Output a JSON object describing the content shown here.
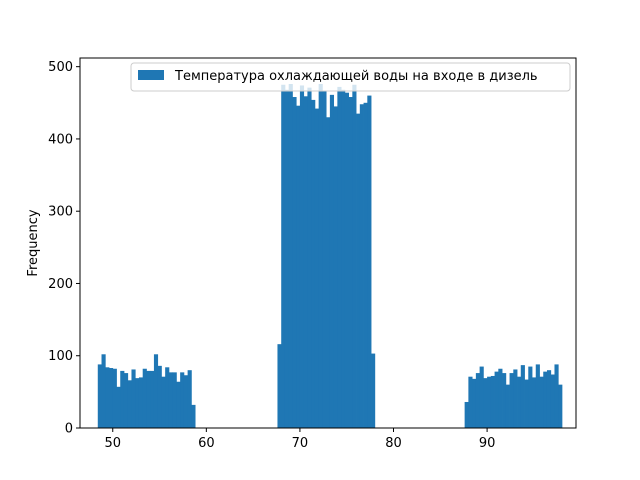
{
  "chart_data": {
    "type": "bar",
    "title": "",
    "xlabel": "",
    "ylabel": "Frequency",
    "xlim": [
      46.5,
      99.5
    ],
    "ylim": [
      0,
      512
    ],
    "xticks": [
      50,
      60,
      70,
      80,
      90
    ],
    "yticks": [
      0,
      100,
      200,
      300,
      400,
      500
    ],
    "grid": false,
    "legend_position": "top-right",
    "series": [
      {
        "name": "Температура охлаждающей воды на входе в дизель",
        "color": "#1f77b4",
        "bin_width": 0.4,
        "bins": [
          {
            "x": 48.4,
            "count": 88
          },
          {
            "x": 48.8,
            "count": 102
          },
          {
            "x": 49.2,
            "count": 84
          },
          {
            "x": 49.6,
            "count": 83
          },
          {
            "x": 50.0,
            "count": 82
          },
          {
            "x": 50.4,
            "count": 57
          },
          {
            "x": 50.8,
            "count": 79
          },
          {
            "x": 51.2,
            "count": 76
          },
          {
            "x": 51.6,
            "count": 66
          },
          {
            "x": 52.0,
            "count": 81
          },
          {
            "x": 52.4,
            "count": 69
          },
          {
            "x": 52.8,
            "count": 70
          },
          {
            "x": 53.2,
            "count": 82
          },
          {
            "x": 53.6,
            "count": 79
          },
          {
            "x": 54.0,
            "count": 79
          },
          {
            "x": 54.4,
            "count": 102
          },
          {
            "x": 54.8,
            "count": 86
          },
          {
            "x": 55.2,
            "count": 71
          },
          {
            "x": 55.6,
            "count": 84
          },
          {
            "x": 56.0,
            "count": 77
          },
          {
            "x": 56.4,
            "count": 77
          },
          {
            "x": 56.8,
            "count": 64
          },
          {
            "x": 57.2,
            "count": 77
          },
          {
            "x": 57.6,
            "count": 73
          },
          {
            "x": 58.0,
            "count": 80
          },
          {
            "x": 58.4,
            "count": 32
          },
          {
            "x": 67.6,
            "count": 116
          },
          {
            "x": 68.0,
            "count": 475
          },
          {
            "x": 68.4,
            "count": 468
          },
          {
            "x": 68.8,
            "count": 476
          },
          {
            "x": 69.2,
            "count": 458
          },
          {
            "x": 69.6,
            "count": 446
          },
          {
            "x": 70.0,
            "count": 474
          },
          {
            "x": 70.4,
            "count": 459
          },
          {
            "x": 70.8,
            "count": 471
          },
          {
            "x": 71.2,
            "count": 454
          },
          {
            "x": 71.6,
            "count": 442
          },
          {
            "x": 72.0,
            "count": 476
          },
          {
            "x": 72.4,
            "count": 466
          },
          {
            "x": 72.8,
            "count": 430
          },
          {
            "x": 73.2,
            "count": 461
          },
          {
            "x": 73.6,
            "count": 445
          },
          {
            "x": 74.0,
            "count": 472
          },
          {
            "x": 74.4,
            "count": 468
          },
          {
            "x": 74.8,
            "count": 464
          },
          {
            "x": 75.2,
            "count": 458
          },
          {
            "x": 75.6,
            "count": 475
          },
          {
            "x": 76.0,
            "count": 435
          },
          {
            "x": 76.4,
            "count": 448
          },
          {
            "x": 76.8,
            "count": 450
          },
          {
            "x": 77.2,
            "count": 460
          },
          {
            "x": 77.6,
            "count": 103
          },
          {
            "x": 87.6,
            "count": 36
          },
          {
            "x": 88.0,
            "count": 71
          },
          {
            "x": 88.4,
            "count": 68
          },
          {
            "x": 88.8,
            "count": 76
          },
          {
            "x": 89.2,
            "count": 85
          },
          {
            "x": 89.6,
            "count": 69
          },
          {
            "x": 90.0,
            "count": 71
          },
          {
            "x": 90.4,
            "count": 72
          },
          {
            "x": 90.8,
            "count": 78
          },
          {
            "x": 91.2,
            "count": 82
          },
          {
            "x": 91.6,
            "count": 76
          },
          {
            "x": 92.0,
            "count": 60
          },
          {
            "x": 92.4,
            "count": 76
          },
          {
            "x": 92.8,
            "count": 81
          },
          {
            "x": 93.2,
            "count": 71
          },
          {
            "x": 93.6,
            "count": 87
          },
          {
            "x": 94.0,
            "count": 67
          },
          {
            "x": 94.4,
            "count": 85
          },
          {
            "x": 94.8,
            "count": 70
          },
          {
            "x": 95.2,
            "count": 88
          },
          {
            "x": 95.6,
            "count": 71
          },
          {
            "x": 96.0,
            "count": 78
          },
          {
            "x": 96.4,
            "count": 80
          },
          {
            "x": 96.8,
            "count": 74
          },
          {
            "x": 97.2,
            "count": 88
          },
          {
            "x": 97.6,
            "count": 60
          }
        ]
      }
    ]
  }
}
